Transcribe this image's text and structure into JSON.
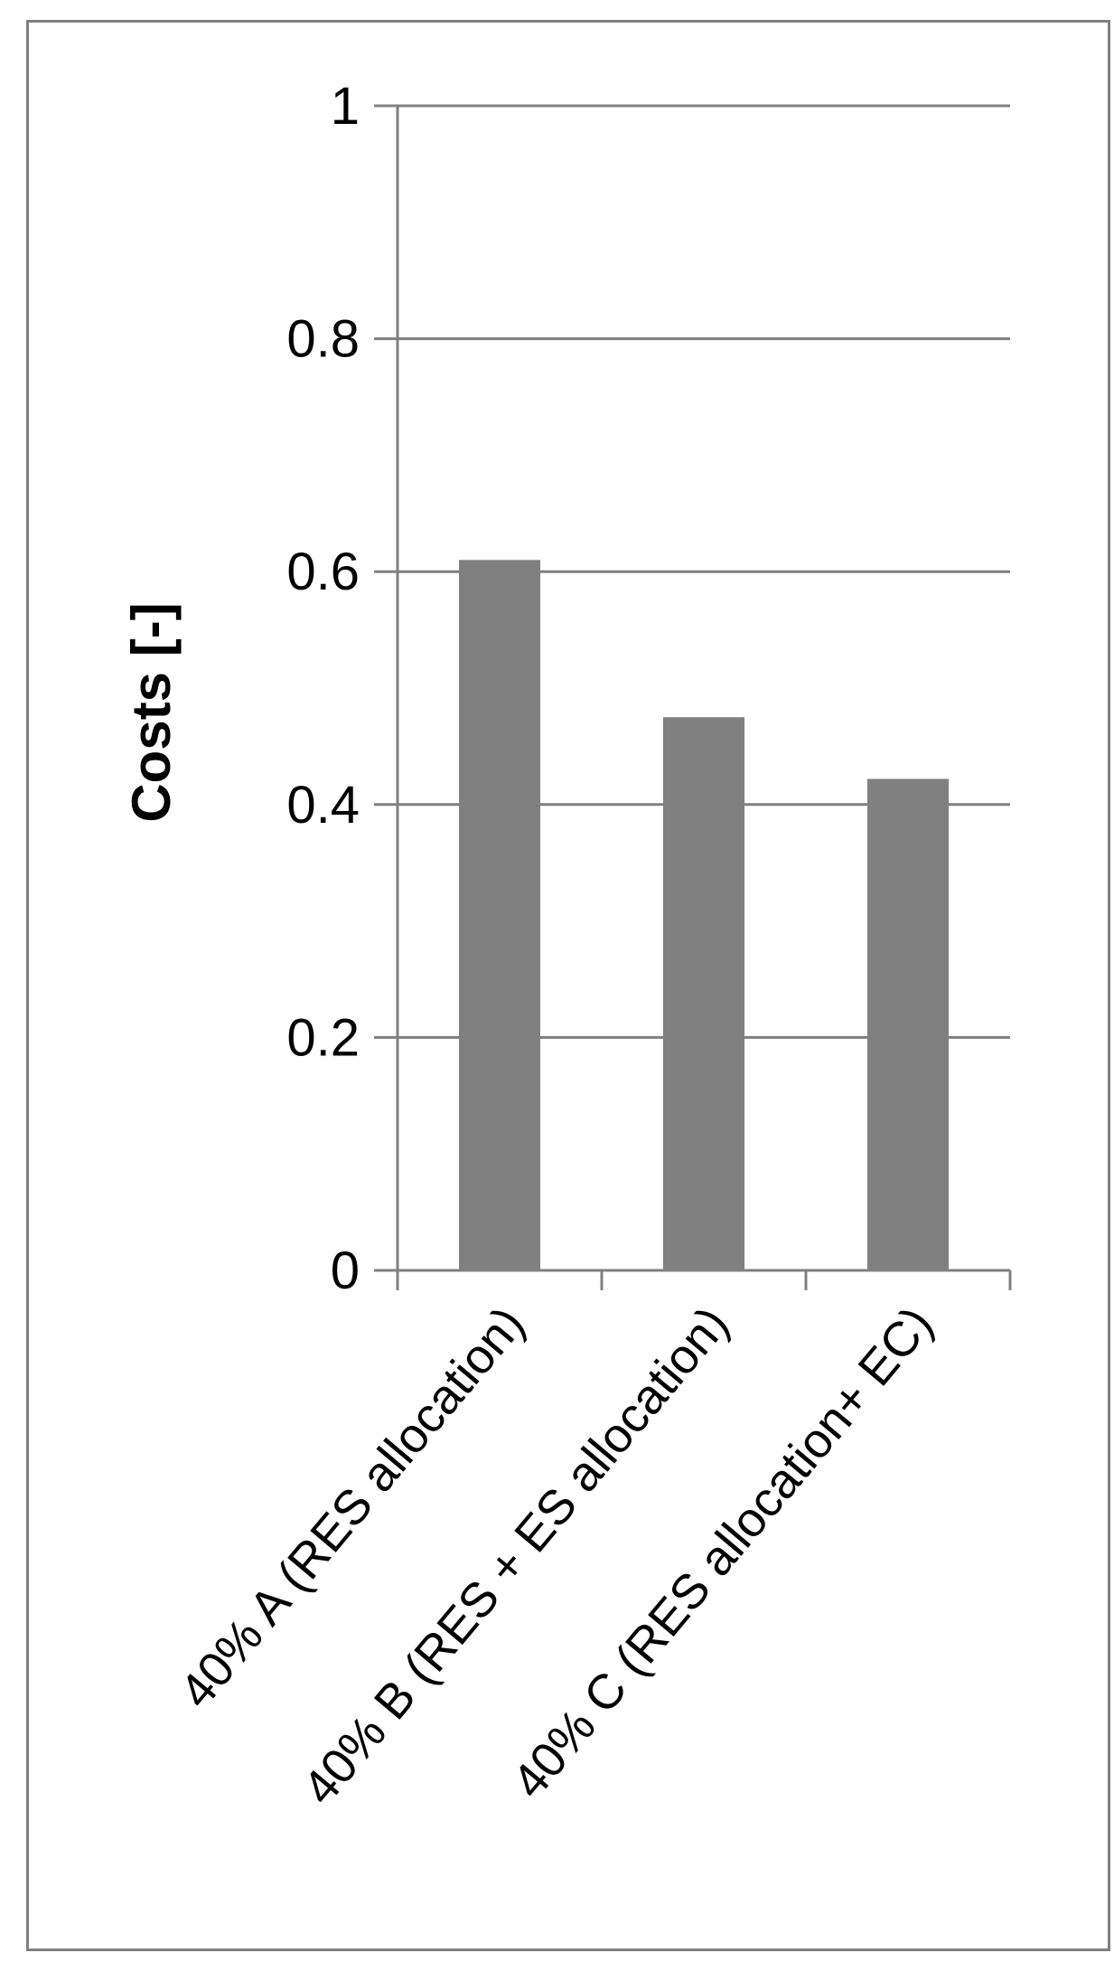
{
  "chart_data": {
    "type": "bar",
    "title": "",
    "xlabel": "",
    "ylabel": "Costs [-]",
    "categories": [
      "40% A (RES allocation)",
      "40% B (RES + ES allocation)",
      "40% C (RES allocation+ EC)"
    ],
    "values": [
      0.61,
      0.475,
      0.422
    ],
    "ylim": [
      0,
      1
    ],
    "yticks": [
      "0",
      "0.2",
      "0.4",
      "0.6",
      "0.8",
      "1"
    ],
    "grid": true,
    "legend": "none",
    "bar_color": "#808080",
    "grid_color": "#808080"
  }
}
